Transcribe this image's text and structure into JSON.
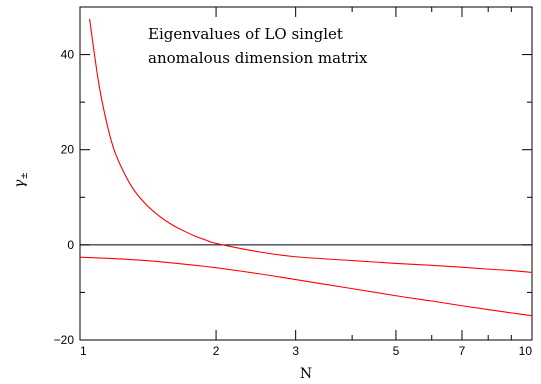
{
  "chart_data": {
    "type": "line",
    "annotation": [
      "Eigenvalues of LO  singlet",
      "anomalous dimension matrix"
    ],
    "xlabel": "N",
    "ylabel": "γ",
    "ylabel_subscript": "±",
    "xscale": "log",
    "xlim": [
      1,
      10
    ],
    "ylim": [
      -20,
      50
    ],
    "x_major_ticks": [
      1,
      2,
      3,
      5,
      7,
      10
    ],
    "x_tick_labels": [
      "1",
      "2",
      "3",
      "5",
      "7",
      "10"
    ],
    "x_minor_ticks": [
      4,
      6,
      8,
      9
    ],
    "y_major_ticks": [
      -20,
      0,
      20,
      40
    ],
    "y_tick_labels": [
      "−20",
      "0",
      "20",
      "40"
    ],
    "y_minor_step": 10,
    "zero_line": 0,
    "grid": false,
    "series_color": "#ff0000",
    "series": [
      {
        "x": [
          1.05,
          1.1,
          1.15,
          1.2,
          1.3,
          1.4,
          1.5,
          1.6,
          1.7,
          1.8,
          1.9,
          2.0,
          2.5,
          3.0,
          4.0,
          5.0,
          6.0,
          7.0,
          8.0,
          9.0,
          10.0
        ],
        "values": [
          47.5,
          34.0,
          25.0,
          19.0,
          12.3,
          8.5,
          6.0,
          4.2,
          2.9,
          1.8,
          1.0,
          0.3,
          -1.5,
          -2.5,
          -3.3,
          -3.9,
          -4.3,
          -4.7,
          -5.1,
          -5.4,
          -5.8
        ]
      },
      {
        "x": [
          1.0,
          1.2,
          1.4,
          1.6,
          1.8,
          2.0,
          2.5,
          3.0,
          4.0,
          5.0,
          6.0,
          7.0,
          8.0,
          9.0,
          10.0
        ],
        "values": [
          -2.6,
          -2.9,
          -3.3,
          -3.8,
          -4.3,
          -4.8,
          -6.1,
          -7.3,
          -9.2,
          -10.7,
          -11.8,
          -12.8,
          -13.6,
          -14.3,
          -14.9
        ]
      }
    ]
  }
}
